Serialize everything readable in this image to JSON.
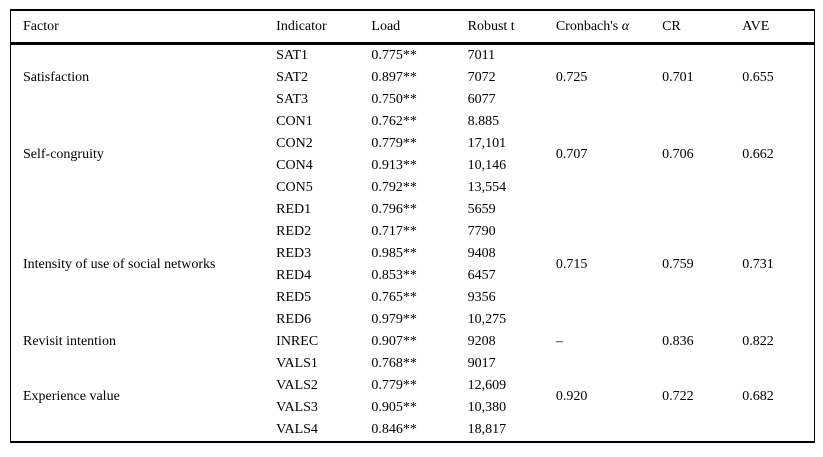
{
  "table": {
    "columns": {
      "factor": "Factor",
      "indicator": "Indicator",
      "load": "Load",
      "robust_t": "Robust t",
      "cronbach_label": "Cronbach's",
      "cronbach_alpha": "α",
      "cr": "CR",
      "ave": "AVE"
    },
    "groups": [
      {
        "factor": "Satisfaction",
        "cronbach": "0.725",
        "cr": "0.701",
        "ave": "0.655",
        "rows": [
          {
            "indicator": "SAT1",
            "load": "0.775**",
            "robust_t": "7011"
          },
          {
            "indicator": "SAT2",
            "load": "0.897**",
            "robust_t": "7072"
          },
          {
            "indicator": "SAT3",
            "load": "0.750**",
            "robust_t": "6077"
          }
        ]
      },
      {
        "factor": "Self-congruity",
        "cronbach": "0.707",
        "cr": "0.706",
        "ave": "0.662",
        "rows": [
          {
            "indicator": "CON1",
            "load": "0.762**",
            "robust_t": "8.885"
          },
          {
            "indicator": "CON2",
            "load": "0.779**",
            "robust_t": "17,101"
          },
          {
            "indicator": "CON4",
            "load": "0.913**",
            "robust_t": "10,146"
          },
          {
            "indicator": "CON5",
            "load": "0.792**",
            "robust_t": "13,554"
          }
        ]
      },
      {
        "factor": "Intensity of use of social networks",
        "cronbach": "0.715",
        "cr": "0.759",
        "ave": "0.731",
        "rows": [
          {
            "indicator": "RED1",
            "load": "0.796**",
            "robust_t": "5659"
          },
          {
            "indicator": "RED2",
            "load": "0.717**",
            "robust_t": "7790"
          },
          {
            "indicator": "RED3",
            "load": "0.985**",
            "robust_t": "9408"
          },
          {
            "indicator": "RED4",
            "load": "0.853**",
            "robust_t": "6457"
          },
          {
            "indicator": "RED5",
            "load": "0.765**",
            "robust_t": "9356"
          },
          {
            "indicator": "RED6",
            "load": "0.979**",
            "robust_t": "10,275"
          }
        ]
      },
      {
        "factor": "Revisit intention",
        "cronbach": "–",
        "cr": "0.836",
        "ave": "0.822",
        "rows": [
          {
            "indicator": "INREC",
            "load": "0.907**",
            "robust_t": "9208"
          }
        ]
      },
      {
        "factor": "Experience value",
        "cronbach": "0.920",
        "cr": "0.722",
        "ave": "0.682",
        "rows": [
          {
            "indicator": "VALS1",
            "load": "0.768**",
            "robust_t": "9017"
          },
          {
            "indicator": "VALS2",
            "load": "0.779**",
            "robust_t": "12,609"
          },
          {
            "indicator": "VALS3",
            "load": "0.905**",
            "robust_t": "10,380"
          },
          {
            "indicator": "VALS4",
            "load": "0.846**",
            "robust_t": "18,817"
          }
        ]
      }
    ]
  }
}
